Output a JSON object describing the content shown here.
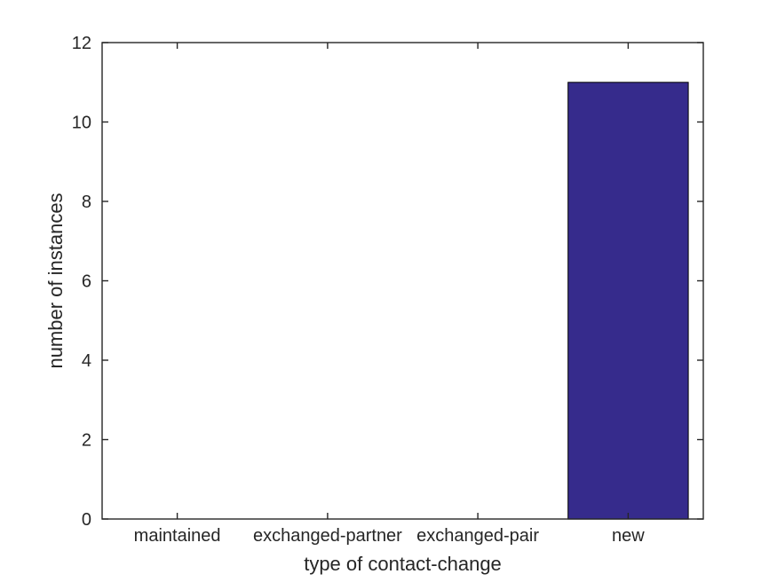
{
  "figure": {
    "background": "#ffffff"
  },
  "chart_data": {
    "type": "bar",
    "categories": [
      "maintained",
      "exchanged-partner",
      "exchanged-pair",
      "new"
    ],
    "values": [
      0,
      0,
      0,
      11
    ],
    "title": "",
    "xlabel": "type of contact-change",
    "ylabel": "number of instances",
    "ylim": [
      0,
      12
    ],
    "yticks": [
      0,
      2,
      4,
      6,
      8,
      10,
      12
    ],
    "ytick_labels": [
      "0",
      "2",
      "4",
      "6",
      "8",
      "10",
      "12"
    ],
    "bar_width_fraction": 0.8,
    "bar_fill_color": "#362B8C",
    "bar_edge_color": "#000000",
    "axis_color": "#262626",
    "text_color": "#262626",
    "grid": false,
    "box": true,
    "tick_direction": "in",
    "legend": null
  }
}
